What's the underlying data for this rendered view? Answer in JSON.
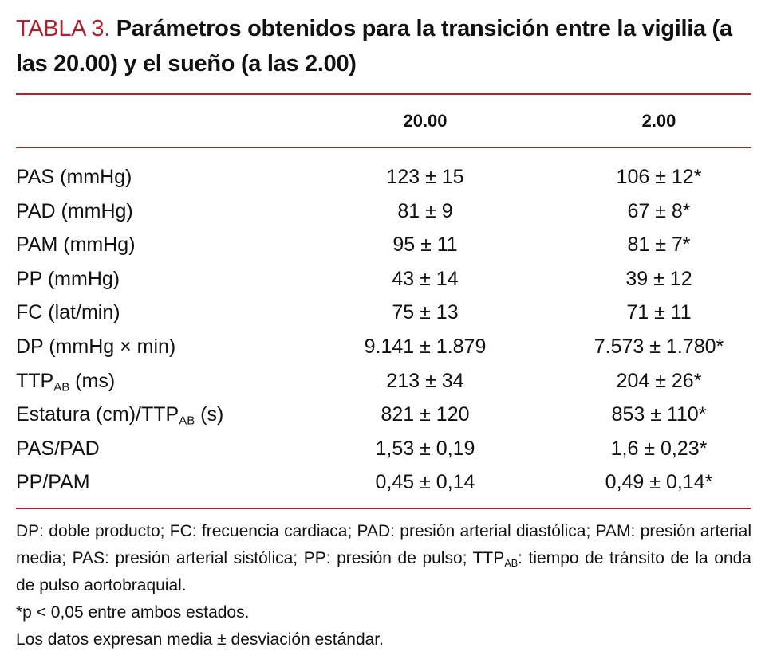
{
  "header": {
    "label": "TABLA 3.",
    "title": "Parámetros obtenidos para la transición entre la vigilia (a las 20.00) y el sueño (a las 2.00)"
  },
  "table": {
    "columns": [
      "20.00",
      "2.00"
    ],
    "rows": [
      {
        "label": [
          {
            "text": "PAS (mmHg)"
          }
        ],
        "values": [
          "123 ± 15",
          "106 ± 12*"
        ]
      },
      {
        "label": [
          {
            "text": "PAD (mmHg)"
          }
        ],
        "values": [
          "81 ± 9",
          "67 ± 8*"
        ]
      },
      {
        "label": [
          {
            "text": "PAM (mmHg)"
          }
        ],
        "values": [
          "95 ± 11",
          "81 ± 7*"
        ]
      },
      {
        "label": [
          {
            "text": "PP (mmHg)"
          }
        ],
        "values": [
          "43 ± 14",
          "39 ± 12"
        ]
      },
      {
        "label": [
          {
            "text": "FC (lat/min)"
          }
        ],
        "values": [
          "75 ± 13",
          "71 ± 11"
        ]
      },
      {
        "label": [
          {
            "text": "DP (mmHg × min)"
          }
        ],
        "values": [
          "9.141 ± 1.879",
          "7.573 ± 1.780*"
        ]
      },
      {
        "label": [
          {
            "text": "TTP"
          },
          {
            "text": "AB",
            "sub": true
          },
          {
            "text": " (ms)"
          }
        ],
        "values": [
          "213 ± 34",
          "204 ± 26*"
        ]
      },
      {
        "label": [
          {
            "text": "Estatura (cm)/TTP"
          },
          {
            "text": "AB",
            "sub": true
          },
          {
            "text": " (s)"
          }
        ],
        "values": [
          "821 ± 120",
          "853 ± 110*"
        ]
      },
      {
        "label": [
          {
            "text": "PAS/PAD"
          }
        ],
        "values": [
          "1,53 ± 0,19",
          "1,6 ± 0,23*"
        ]
      },
      {
        "label": [
          {
            "text": "PP/PAM"
          }
        ],
        "values": [
          "0,45 ± 0,14",
          "0,49 ± 0,14*"
        ]
      }
    ]
  },
  "footnotes": [
    [
      {
        "text": "DP: doble producto; FC: frecuencia cardiaca; PAD: presión arterial diastólica; PAM: presión arterial media; PAS: presión arterial sistólica; PP: presión de pulso; TTP"
      },
      {
        "text": "AB",
        "sub": true
      },
      {
        "text": ": tiempo de tránsito de la onda de pulso aortobraquial."
      }
    ],
    [
      {
        "text": "*p < 0,05 entre ambos estados."
      }
    ],
    [
      {
        "text": "Los datos expresan media ± desviación estándar."
      }
    ]
  ]
}
